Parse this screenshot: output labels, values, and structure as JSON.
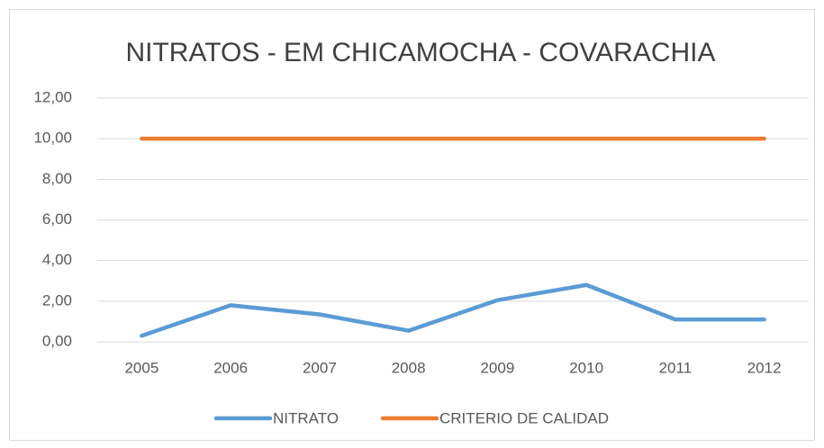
{
  "chart_data": {
    "type": "line",
    "title": "NITRATOS - EM CHICAMOCHA - COVARACHIA",
    "categories": [
      "2005",
      "2006",
      "2007",
      "2008",
      "2009",
      "2010",
      "2011",
      "2012"
    ],
    "series": [
      {
        "name": "NITRATO",
        "color": "#5b9bd5",
        "values": [
          0.3,
          1.8,
          1.35,
          0.55,
          2.05,
          2.8,
          1.1,
          1.1
        ]
      },
      {
        "name": "CRITERIO DE CALIDAD",
        "color": "#ed7d31",
        "values": [
          10,
          10,
          10,
          10,
          10,
          10,
          10,
          10
        ]
      }
    ],
    "ylim": [
      0,
      12
    ],
    "yticks": [
      {
        "value": 0,
        "label": "0,00"
      },
      {
        "value": 2,
        "label": "2,00"
      },
      {
        "value": 4,
        "label": "4,00"
      },
      {
        "value": 6,
        "label": "6,00"
      },
      {
        "value": 8,
        "label": "8,00"
      },
      {
        "value": 10,
        "label": "10,00"
      },
      {
        "value": 12,
        "label": "12,00"
      }
    ],
    "grid": true,
    "legend": "bottom"
  }
}
